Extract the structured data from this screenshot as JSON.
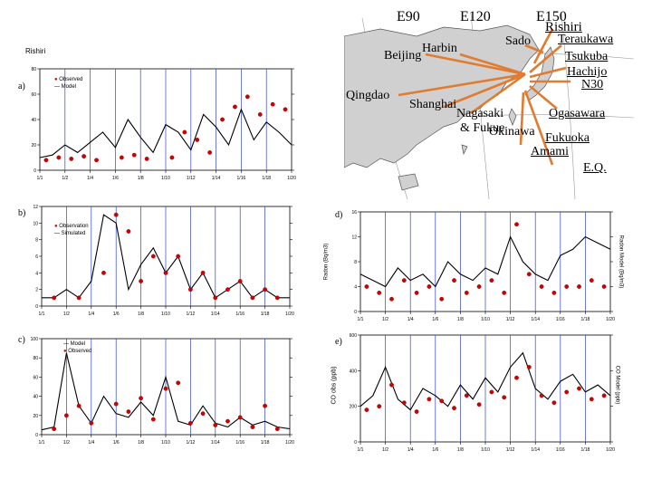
{
  "map": {
    "longitude_labels": [
      "E90",
      "E120",
      "E150"
    ],
    "latitude_label": "N30",
    "equator_label": "E.Q.",
    "stations": [
      "Rishiri",
      "Teraukawa",
      "Tsukuba",
      "Hachijo",
      "Sado",
      "Beijing",
      "Harbin",
      "Qingdao",
      "Shanghai",
      "Nagasaki",
      "& Fukue",
      "Okinawa",
      "Fukuoka",
      "Amami",
      "Ogasawara"
    ]
  },
  "panels": {
    "a": {
      "letter": "a)",
      "station": "Rishiri",
      "legend": [
        "Observed",
        "Model"
      ]
    },
    "b": {
      "letter": "b)",
      "legend": [
        "Observation",
        "Simulated"
      ]
    },
    "c": {
      "letter": "c)",
      "legend": [
        "Model",
        "Observed"
      ]
    },
    "d": {
      "letter": "d)",
      "ylabel": "Radon (Bq/m3)",
      "y2label": "Radon Model (Bq/m3)"
    },
    "e": {
      "letter": "e)",
      "ylabel": "CO obs (ppb)",
      "y2label": "CO Model (ppb)"
    }
  },
  "chart_data": [
    {
      "id": "a",
      "type": "line",
      "title": "Rishiri",
      "legend": [
        "Observed",
        "Model"
      ],
      "x_ticks": [
        "1/1",
        "1/2",
        "1/4",
        "1/6",
        "1/8",
        "1/10",
        "1/12",
        "1/14",
        "1/16",
        "1/18",
        "1/20"
      ],
      "y_ticks": [
        "0",
        "20",
        "40",
        "60",
        "80"
      ],
      "xlim": [
        0,
        20
      ],
      "ylim": [
        0,
        80
      ],
      "series": [
        {
          "name": "Model",
          "x": [
            0,
            1,
            2,
            3,
            4,
            5,
            6,
            7,
            8,
            9,
            10,
            11,
            12,
            13,
            14,
            15,
            16,
            17,
            18,
            19,
            20
          ],
          "values": [
            10,
            12,
            20,
            14,
            22,
            30,
            18,
            40,
            26,
            14,
            36,
            30,
            16,
            44,
            34,
            20,
            48,
            24,
            38,
            30,
            20
          ]
        },
        {
          "name": "Observed",
          "x": [
            0.5,
            1.5,
            2.5,
            3.5,
            4.5,
            6.5,
            7.5,
            8.5,
            10.5,
            11.5,
            12.5,
            13.5,
            14.5,
            15.5,
            16.5,
            17.5,
            18.5,
            19.5
          ],
          "values": [
            8,
            10,
            9,
            11,
            8,
            10,
            12,
            9,
            10,
            30,
            24,
            14,
            40,
            50,
            58,
            44,
            52,
            48
          ]
        }
      ]
    },
    {
      "id": "b",
      "type": "line",
      "legend": [
        "Observation",
        "Simulated"
      ],
      "x_ticks": [
        "1/1",
        "1/2",
        "1/4",
        "1/6",
        "1/8",
        "1/10",
        "1/12",
        "1/14",
        "1/16",
        "1/18",
        "1/20"
      ],
      "y_ticks": [
        "0",
        "2",
        "4",
        "6",
        "8",
        "10",
        "12"
      ],
      "xlim": [
        0,
        20
      ],
      "ylim": [
        0,
        12
      ],
      "series": [
        {
          "name": "Simulated",
          "x": [
            0,
            1,
            2,
            3,
            4,
            5,
            6,
            7,
            8,
            9,
            10,
            11,
            12,
            13,
            14,
            15,
            16,
            17,
            18,
            19,
            20
          ],
          "values": [
            1,
            1,
            2,
            1,
            3,
            11,
            10,
            2,
            5,
            7,
            4,
            6,
            2,
            4,
            1,
            2,
            3,
            1,
            2,
            1,
            1
          ]
        },
        {
          "name": "Observation",
          "x": [
            1,
            3,
            5,
            6,
            7,
            8,
            9,
            10,
            11,
            12,
            13,
            14,
            15,
            16,
            17,
            18,
            19
          ],
          "values": [
            1,
            1,
            4,
            11,
            9,
            3,
            6,
            4,
            6,
            2,
            4,
            1,
            2,
            3,
            1,
            2,
            1
          ]
        }
      ]
    },
    {
      "id": "c",
      "type": "line",
      "legend": [
        "Model",
        "Observed"
      ],
      "x_ticks": [
        "1/1",
        "1/2",
        "1/4",
        "1/6",
        "1/8",
        "1/10",
        "1/12",
        "1/14",
        "1/16",
        "1/18",
        "1/20"
      ],
      "y_ticks": [
        "0",
        "20",
        "40",
        "60",
        "80",
        "100"
      ],
      "xlim": [
        0,
        20
      ],
      "ylim": [
        0,
        100
      ],
      "series": [
        {
          "name": "Model",
          "x": [
            0,
            1,
            2,
            3,
            4,
            5,
            6,
            7,
            8,
            9,
            10,
            11,
            12,
            13,
            14,
            15,
            16,
            17,
            18,
            19,
            20
          ],
          "values": [
            5,
            8,
            85,
            30,
            12,
            40,
            22,
            18,
            34,
            20,
            60,
            14,
            10,
            30,
            12,
            8,
            18,
            10,
            14,
            8,
            6
          ]
        },
        {
          "name": "Observed",
          "x": [
            1,
            2,
            3,
            4,
            6,
            7,
            8,
            9,
            10,
            11,
            12,
            13,
            14,
            15,
            16,
            17,
            18,
            19
          ],
          "values": [
            6,
            20,
            30,
            12,
            32,
            24,
            38,
            16,
            48,
            54,
            12,
            22,
            10,
            14,
            18,
            8,
            30,
            6
          ]
        }
      ]
    },
    {
      "id": "d",
      "type": "line",
      "ylabel": "Radon (Bq/m3)",
      "y2label": "Radon Model (Bq/m3)",
      "x_ticks": [
        "1/1",
        "1/2",
        "1/4",
        "1/6",
        "1/8",
        "1/10",
        "1/12",
        "1/14",
        "1/16",
        "1/18",
        "1/20"
      ],
      "y_ticks": [
        "0",
        "4",
        "8",
        "12",
        "16"
      ],
      "xlim": [
        0,
        20
      ],
      "ylim": [
        0,
        16
      ],
      "series": [
        {
          "name": "Model",
          "x": [
            0,
            1,
            2,
            3,
            4,
            5,
            6,
            7,
            8,
            9,
            10,
            11,
            12,
            13,
            14,
            15,
            16,
            17,
            18,
            19,
            20
          ],
          "values": [
            6,
            5,
            4,
            7,
            5,
            6,
            4,
            8,
            6,
            5,
            7,
            6,
            12,
            8,
            6,
            5,
            9,
            10,
            12,
            11,
            10
          ]
        },
        {
          "name": "Observed",
          "x": [
            0.5,
            1.5,
            2.5,
            3.5,
            4.5,
            5.5,
            6.5,
            7.5,
            8.5,
            9.5,
            10.5,
            11.5,
            12.5,
            13.5,
            14.5,
            15.5,
            16.5,
            17.5,
            18.5,
            19.5
          ],
          "values": [
            4,
            3,
            2,
            5,
            3,
            4,
            2,
            5,
            3,
            4,
            5,
            3,
            14,
            6,
            4,
            3,
            4,
            4,
            5,
            4
          ]
        }
      ]
    },
    {
      "id": "e",
      "type": "line",
      "ylabel": "CO obs (ppb)",
      "y2label": "CO Model (ppb)",
      "x_ticks": [
        "1/1",
        "1/2",
        "1/4",
        "1/6",
        "1/8",
        "1/10",
        "1/12",
        "1/14",
        "1/16",
        "1/18",
        "1/20"
      ],
      "y_ticks": [
        "0",
        "200",
        "400",
        "600"
      ],
      "xlim": [
        0,
        20
      ],
      "ylim": [
        0,
        600
      ],
      "series": [
        {
          "name": "Model",
          "x": [
            0,
            1,
            2,
            3,
            4,
            5,
            6,
            7,
            8,
            9,
            10,
            11,
            12,
            13,
            14,
            15,
            16,
            17,
            18,
            19,
            20
          ],
          "values": [
            200,
            260,
            420,
            240,
            180,
            300,
            260,
            200,
            320,
            240,
            360,
            280,
            420,
            500,
            300,
            240,
            340,
            380,
            280,
            320,
            260
          ]
        },
        {
          "name": "Observed",
          "x": [
            0.5,
            1.5,
            2.5,
            3.5,
            4.5,
            5.5,
            6.5,
            7.5,
            8.5,
            9.5,
            10.5,
            11.5,
            12.5,
            13.5,
            14.5,
            15.5,
            16.5,
            17.5,
            18.5,
            19.5
          ],
          "values": [
            180,
            200,
            320,
            220,
            170,
            240,
            230,
            190,
            260,
            210,
            280,
            250,
            360,
            420,
            260,
            220,
            280,
            300,
            240,
            260
          ]
        }
      ]
    }
  ]
}
